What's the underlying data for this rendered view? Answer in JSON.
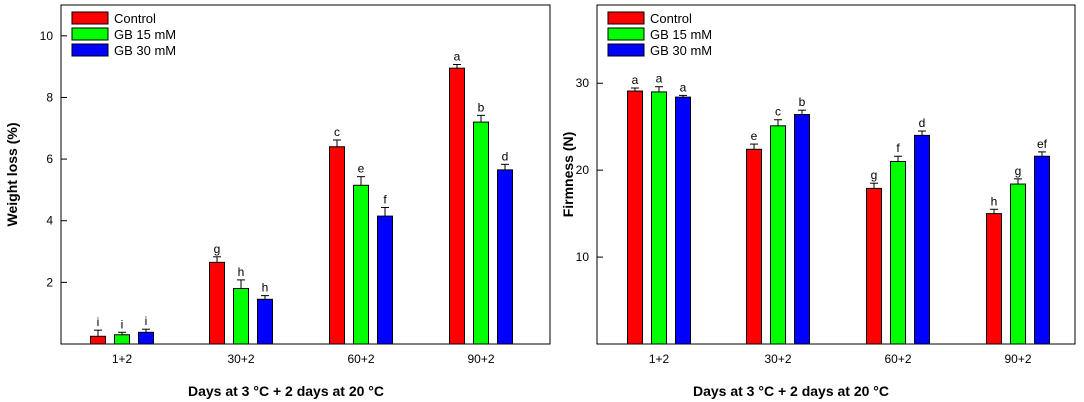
{
  "colors": {
    "series": [
      "#ff0000",
      "#00ff00",
      "#0000ff"
    ],
    "axis": "#000000"
  },
  "chart_data": [
    {
      "type": "bar",
      "title": "",
      "xlabel": "Days at 3 °C + 2 days at 20 °C",
      "ylabel": "Weight loss (%)",
      "categories": [
        "1+2",
        "30+2",
        "60+2",
        "90+2"
      ],
      "ylim": [
        0,
        11
      ],
      "yticks": [
        2,
        4,
        6,
        8,
        10
      ],
      "yticklabels": [
        "2",
        "4",
        "6",
        "8",
        "10"
      ],
      "legend_position": "top-left",
      "series": [
        {
          "name": "Control",
          "values": [
            0.25,
            2.65,
            6.4,
            8.95
          ],
          "errors": [
            0.2,
            0.18,
            0.22,
            0.12
          ],
          "labels": [
            "i",
            "g",
            "c",
            "a"
          ]
        },
        {
          "name": "GB 15 mM",
          "values": [
            0.3,
            1.8,
            5.15,
            7.2
          ],
          "errors": [
            0.08,
            0.28,
            0.28,
            0.22
          ],
          "labels": [
            "i",
            "h",
            "e",
            "b"
          ]
        },
        {
          "name": "GB 30 mM",
          "values": [
            0.38,
            1.45,
            4.15,
            5.65
          ],
          "errors": [
            0.1,
            0.12,
            0.28,
            0.18
          ],
          "labels": [
            "i",
            "h",
            "f",
            "d"
          ]
        }
      ]
    },
    {
      "type": "bar",
      "title": "",
      "xlabel": "Days at 3 °C + 2 days at 20 °C",
      "ylabel": "Firmness (N)",
      "categories": [
        "1+2",
        "30+2",
        "60+2",
        "90+2"
      ],
      "ylim": [
        0,
        39
      ],
      "yticks": [
        10,
        20,
        30
      ],
      "yticklabels": [
        "10",
        "20",
        "30"
      ],
      "legend_position": "top-left",
      "series": [
        {
          "name": "Control",
          "values": [
            29.1,
            22.4,
            17.9,
            15.0
          ],
          "errors": [
            0.35,
            0.6,
            0.6,
            0.5
          ],
          "labels": [
            "a",
            "e",
            "g",
            "h"
          ]
        },
        {
          "name": "GB 15 mM",
          "values": [
            29.0,
            25.1,
            21.0,
            18.4
          ],
          "errors": [
            0.6,
            0.7,
            0.6,
            0.6
          ],
          "labels": [
            "a",
            "c",
            "f",
            "g"
          ]
        },
        {
          "name": "GB 30 mM",
          "values": [
            28.4,
            26.4,
            24.0,
            21.6
          ],
          "errors": [
            0.2,
            0.5,
            0.5,
            0.5
          ],
          "labels": [
            "a",
            "b",
            "d",
            "ef"
          ]
        }
      ]
    }
  ]
}
